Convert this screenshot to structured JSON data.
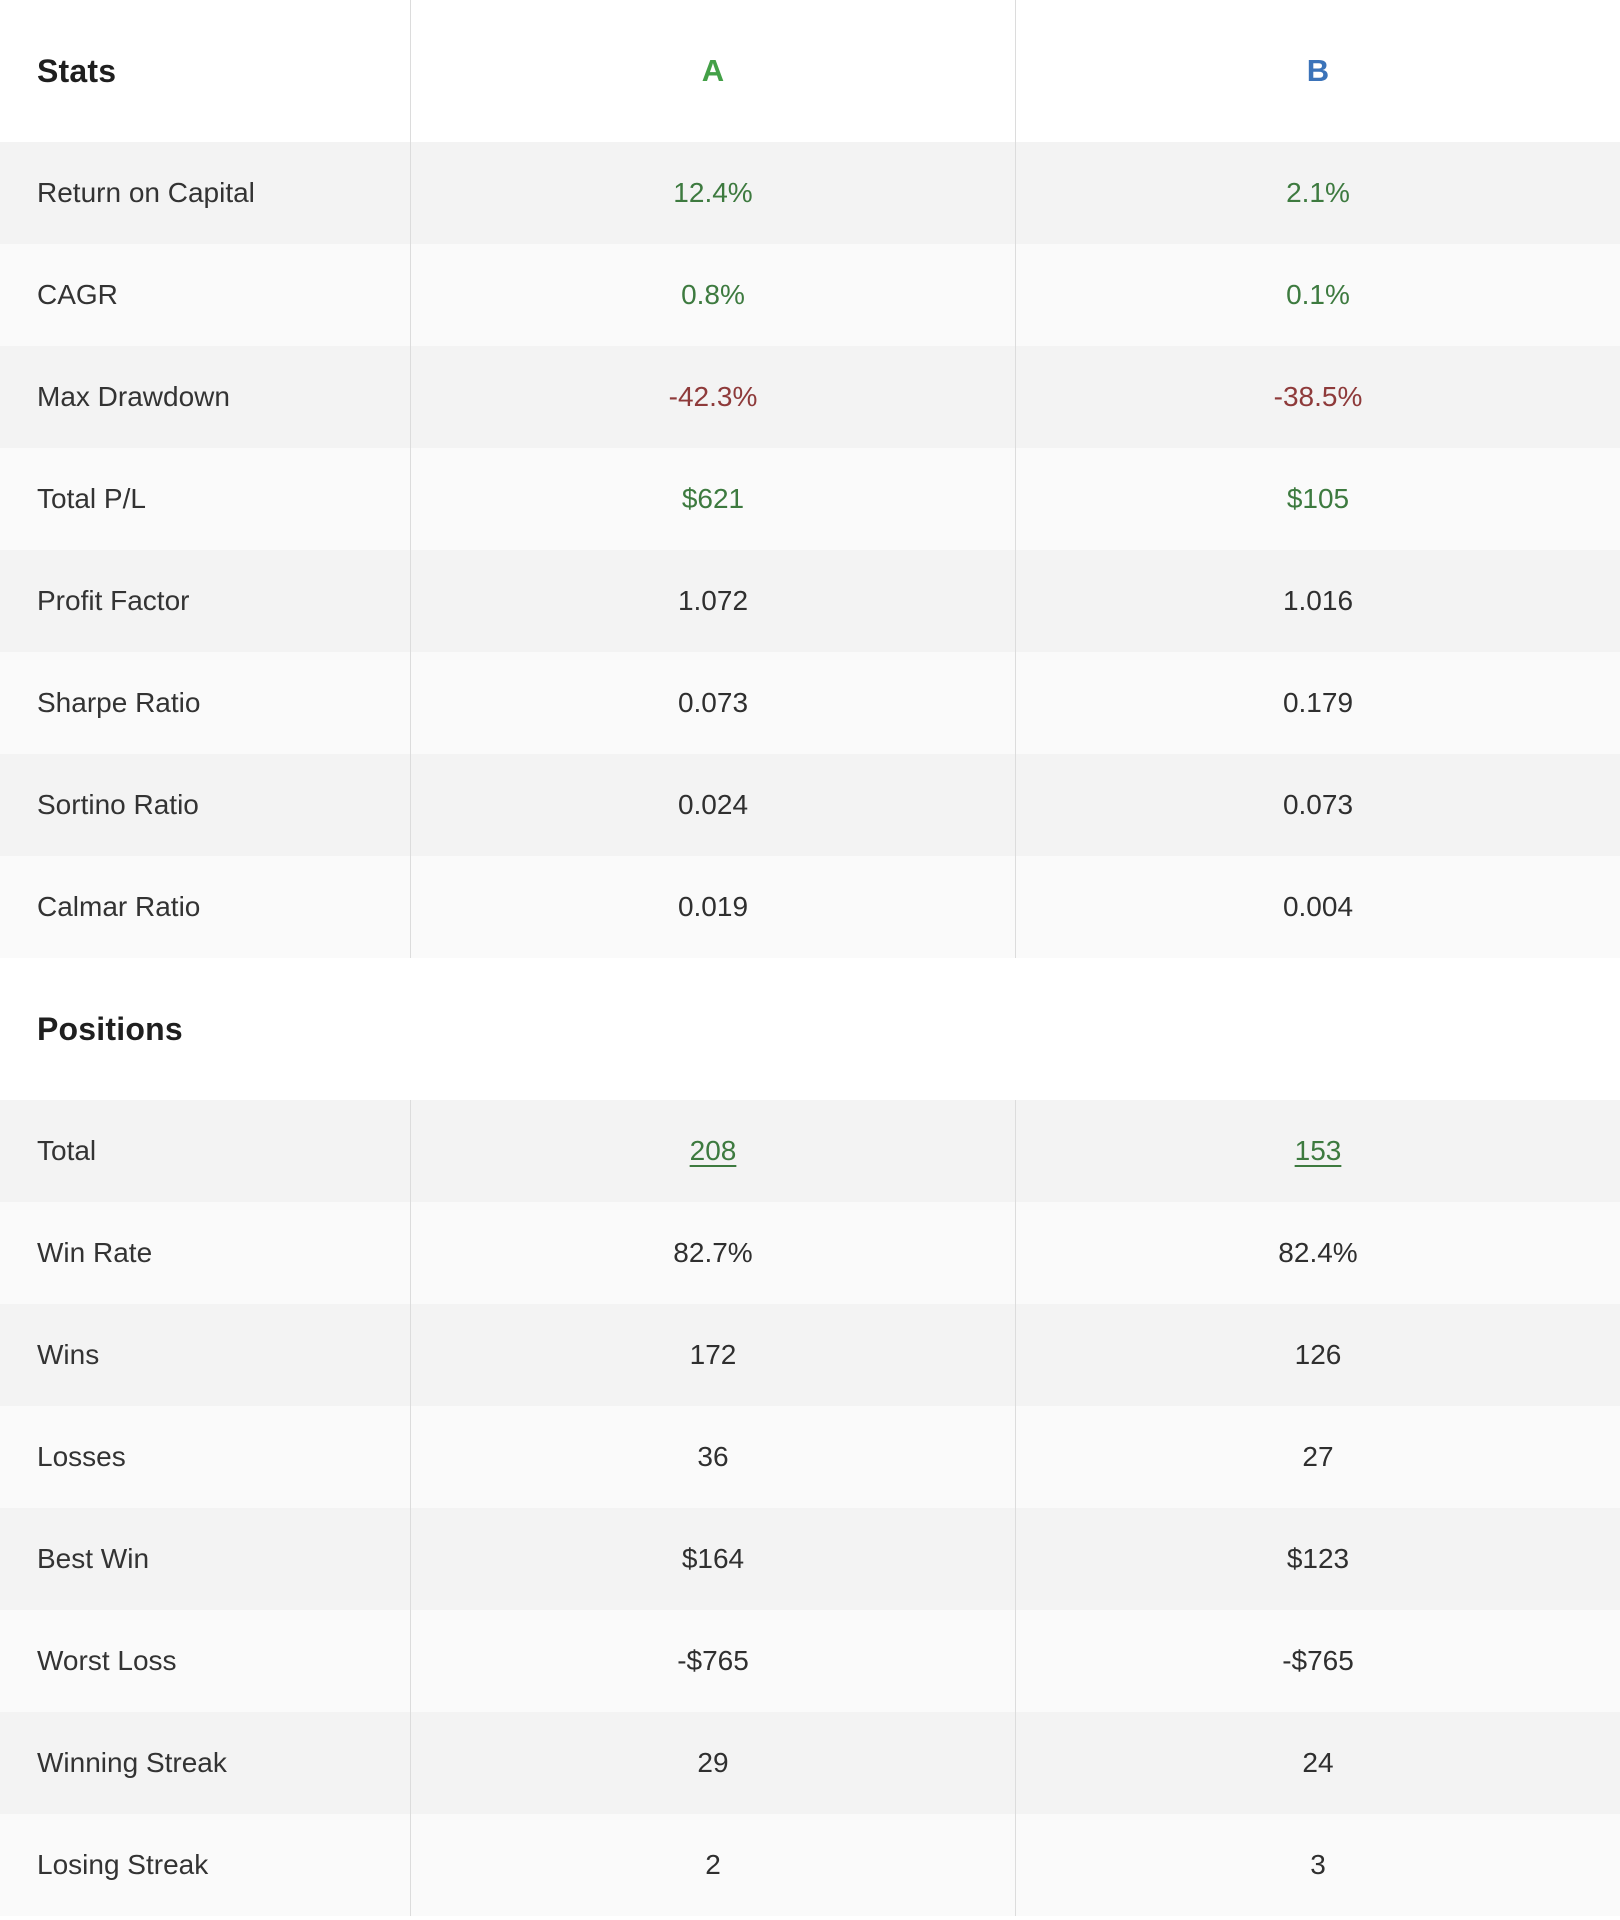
{
  "colors": {
    "column_a_header": "#43a047",
    "column_b_header": "#3b73b9",
    "positive_value": "#3d7a3f",
    "negative_value": "#8e3a3a",
    "neutral_value": "#2f2f2f",
    "row_stripe_dark": "#f3f3f3",
    "row_stripe_light": "#fafafa",
    "divider": "#dcdcdc"
  },
  "stats": {
    "title": "Stats",
    "column_a_label": "A",
    "column_b_label": "B",
    "rows": [
      {
        "label": "Return on Capital",
        "a": "12.4%",
        "tone_a": "pos",
        "b": "2.1%",
        "tone_b": "pos"
      },
      {
        "label": "CAGR",
        "a": "0.8%",
        "tone_a": "pos",
        "b": "0.1%",
        "tone_b": "pos"
      },
      {
        "label": "Max Drawdown",
        "a": "-42.3%",
        "tone_a": "neg",
        "b": "-38.5%",
        "tone_b": "neg"
      },
      {
        "label": "Total P/L",
        "a": "$621",
        "tone_a": "pos",
        "b": "$105",
        "tone_b": "pos"
      },
      {
        "label": "Profit Factor",
        "a": "1.072",
        "tone_a": "neutral",
        "b": "1.016",
        "tone_b": "neutral"
      },
      {
        "label": "Sharpe Ratio",
        "a": "0.073",
        "tone_a": "neutral",
        "b": "0.179",
        "tone_b": "neutral"
      },
      {
        "label": "Sortino Ratio",
        "a": "0.024",
        "tone_a": "neutral",
        "b": "0.073",
        "tone_b": "neutral"
      },
      {
        "label": "Calmar Ratio",
        "a": "0.019",
        "tone_a": "neutral",
        "b": "0.004",
        "tone_b": "neutral"
      }
    ]
  },
  "positions": {
    "title": "Positions",
    "rows": [
      {
        "label": "Total",
        "a": "208",
        "tone_a": "link",
        "b": "153",
        "tone_b": "link"
      },
      {
        "label": "Win Rate",
        "a": "82.7%",
        "tone_a": "neutral",
        "b": "82.4%",
        "tone_b": "neutral"
      },
      {
        "label": "Wins",
        "a": "172",
        "tone_a": "neutral",
        "b": "126",
        "tone_b": "neutral"
      },
      {
        "label": "Losses",
        "a": "36",
        "tone_a": "neutral",
        "b": "27",
        "tone_b": "neutral"
      },
      {
        "label": "Best Win",
        "a": "$164",
        "tone_a": "neutral",
        "b": "$123",
        "tone_b": "neutral"
      },
      {
        "label": "Worst Loss",
        "a": "-$765",
        "tone_a": "neutral",
        "b": "-$765",
        "tone_b": "neutral"
      },
      {
        "label": "Winning Streak",
        "a": "29",
        "tone_a": "neutral",
        "b": "24",
        "tone_b": "neutral"
      },
      {
        "label": "Losing Streak",
        "a": "2",
        "tone_a": "neutral",
        "b": "3",
        "tone_b": "neutral"
      }
    ]
  }
}
